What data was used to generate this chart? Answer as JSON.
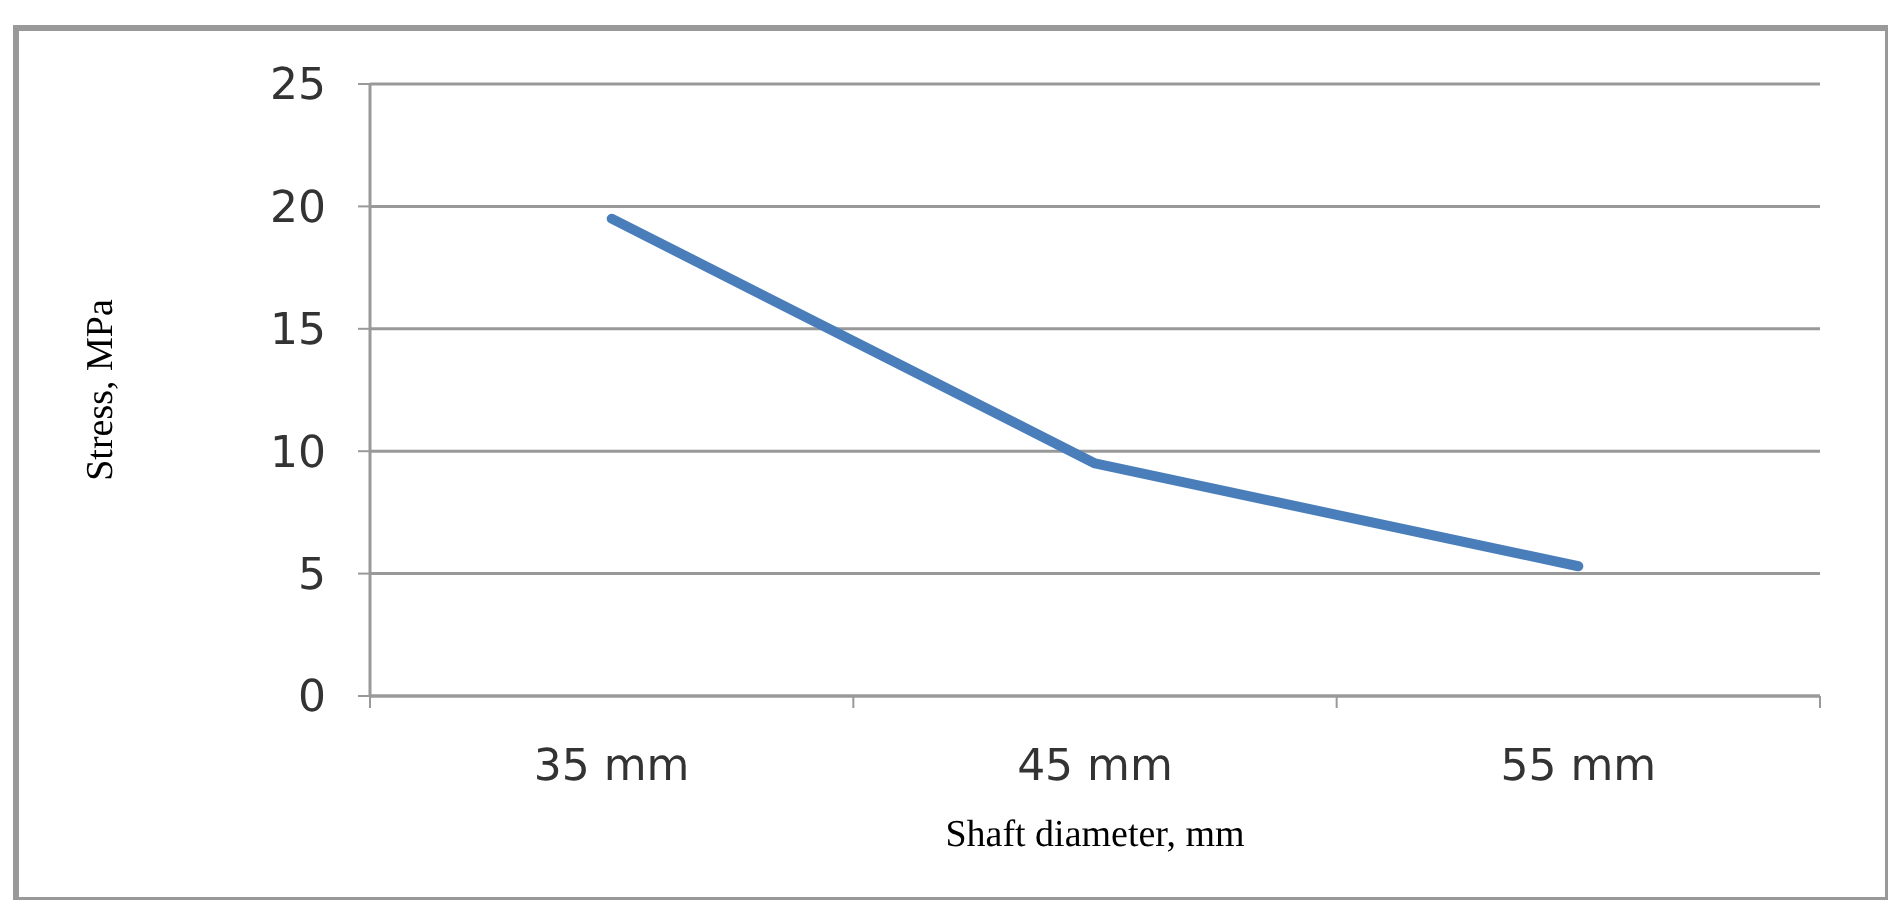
{
  "chart_data": {
    "type": "line",
    "xlabel": "Shaft diameter, mm",
    "ylabel": "Stress, MPa",
    "categories": [
      "35 mm",
      "45 mm",
      "55 mm"
    ],
    "series": [
      {
        "color": "#4a7ebb",
        "values": [
          19.5,
          9.5,
          5.3
        ]
      }
    ],
    "ylim": [
      0,
      25
    ],
    "yticks": [
      0,
      5,
      10,
      15,
      20,
      25
    ],
    "grid": "y",
    "marker": "none",
    "line_style": "solid"
  }
}
